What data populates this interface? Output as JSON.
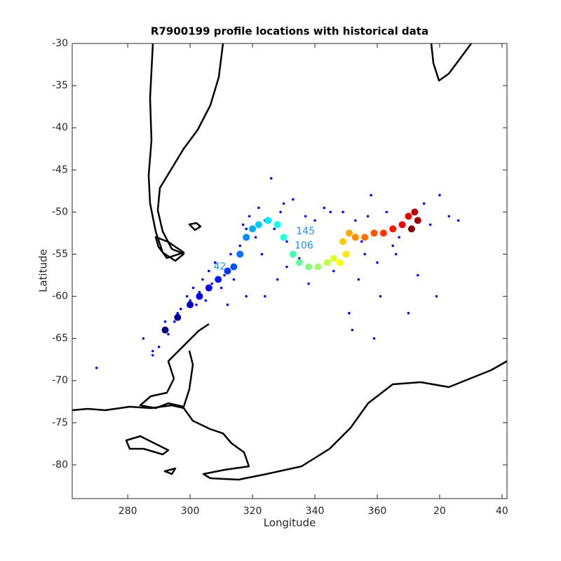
{
  "chart_data": {
    "type": "scatter",
    "title": "R7900199 profile locations with historical data",
    "xlabel": "Longitude",
    "ylabel": "Latitude",
    "xlim": [
      262.2,
      401.6
    ],
    "ylim": [
      -84,
      -30
    ],
    "xticks": [
      280,
      300,
      320,
      340,
      360,
      {
        "value": 380,
        "label": "20"
      },
      {
        "value": 400,
        "label": "40"
      }
    ],
    "yticks": [
      -30,
      -35,
      -40,
      -45,
      -50,
      -55,
      -60,
      -65,
      -70,
      -75,
      -80
    ],
    "colormap": "jet",
    "series": [
      {
        "color": "#0000ff",
        "x": [
          270,
          285,
          288,
          290,
          293,
          295,
          297,
          299,
          301,
          302,
          304,
          305,
          306,
          308,
          310,
          311,
          313,
          314,
          316,
          317,
          318,
          319,
          321,
          322,
          323,
          324,
          326,
          327,
          328,
          329,
          330,
          331,
          333,
          335,
          337,
          340,
          343,
          346,
          349,
          351,
          353,
          354,
          355,
          356,
          357,
          358,
          360,
          361,
          363,
          365,
          367,
          370,
          375,
          377,
          379,
          380,
          383,
          386,
          288,
          292,
          296,
          300,
          303,
          307,
          312,
          318,
          324,
          331,
          338,
          345,
          352,
          359,
          366,
          373
        ],
        "values": [
          -68.5,
          -65,
          -67,
          -66,
          -64.5,
          -63,
          -61.5,
          -60,
          -59,
          -61,
          -58,
          -60.5,
          -57,
          -56,
          -59,
          -57.5,
          -55,
          -58,
          -54,
          -51.5,
          -60,
          -50.5,
          -53,
          -49.5,
          -55,
          -51,
          -46,
          -52,
          -58,
          -50,
          -49,
          -56.5,
          -48.5,
          -55.5,
          -50.5,
          -51,
          -49.5,
          -57,
          -50,
          -62,
          -51,
          -58,
          -53.5,
          -55,
          -50.5,
          -48,
          -56,
          -60,
          -50,
          -54,
          -53,
          -62,
          -49,
          -51.5,
          -60,
          -48,
          -50.5,
          -51,
          -66.5,
          -63,
          -62,
          -60.5,
          -59.5,
          -58.5,
          -61,
          -52,
          -60,
          -53.5,
          -58.5,
          -50,
          -64,
          -65,
          -55,
          -57.5
        ]
      },
      {
        "x": [
          292,
          296,
          300,
          303,
          306,
          309,
          312,
          314,
          316,
          318,
          320,
          322,
          325,
          328,
          330,
          333,
          335,
          338,
          341,
          344,
          346,
          348,
          350,
          349,
          351,
          353,
          356,
          359,
          362,
          365,
          368,
          370,
          372,
          373,
          371
        ],
        "values": [
          -64,
          -62.5,
          -61,
          -60,
          -59,
          -58,
          -57,
          -56.5,
          -55,
          -53,
          -52,
          -51.5,
          -51,
          -51.5,
          -53,
          -55,
          -56,
          -56.5,
          -56.5,
          -56,
          -55.5,
          -56,
          -55,
          -53.5,
          -52.5,
          -53,
          -53,
          -52.5,
          -52.5,
          -52,
          -51.5,
          -50.5,
          -50,
          -51,
          -52
        ]
      }
    ],
    "annotations": [
      {
        "text": "106",
        "x": 336.5,
        "y": -54
      },
      {
        "text": "145",
        "x": 337,
        "y": -52.3
      },
      {
        "text": "42",
        "x": 309.5,
        "y": -56.5
      }
    ]
  }
}
